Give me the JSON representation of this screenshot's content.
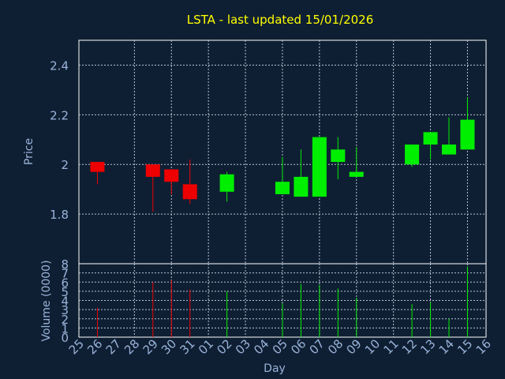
{
  "chart_data": {
    "type": "candlestick",
    "title": "LSTA - last updated 15/01/2026",
    "xlabel": "Day",
    "price_panel": {
      "ylabel": "Price",
      "ylim": [
        1.6,
        2.5
      ],
      "yticks": [
        "1.8",
        "2",
        "2.2",
        "2.4"
      ],
      "grid": true
    },
    "volume_panel": {
      "ylabel": "Volume (0000)",
      "ylim": [
        0,
        8
      ],
      "yticks": [
        "0",
        "1",
        "2",
        "3",
        "4",
        "5",
        "6",
        "7",
        "8"
      ],
      "grid": true
    },
    "x_tick_labels": [
      "25",
      "26",
      "27",
      "28",
      "29",
      "30",
      "31",
      "01",
      "02",
      "03",
      "04",
      "05",
      "06",
      "07",
      "08",
      "09",
      "10",
      "11",
      "12",
      "13",
      "14",
      "15",
      "16"
    ],
    "colors": {
      "up": "#00ee00",
      "down": "#ee0000",
      "title": "#ffff00",
      "axis_text": "#99b3d9",
      "background": "#0f1f33"
    },
    "candles": [
      {
        "day": "26",
        "open": 2.01,
        "high": 2.01,
        "low": 1.92,
        "close": 1.97,
        "volume": 3.2
      },
      {
        "day": "29",
        "open": 2.0,
        "high": 2.0,
        "low": 1.81,
        "close": 1.95,
        "volume": 6.0
      },
      {
        "day": "30",
        "open": 1.98,
        "high": 1.98,
        "low": 1.88,
        "close": 1.93,
        "volume": 6.2
      },
      {
        "day": "31",
        "open": 1.92,
        "high": 2.02,
        "low": 1.84,
        "close": 1.86,
        "volume": 5.2
      },
      {
        "day": "02",
        "open": 1.89,
        "high": 1.97,
        "low": 1.85,
        "close": 1.96,
        "volume": 5.0
      },
      {
        "day": "05",
        "open": 1.88,
        "high": 2.03,
        "low": 1.88,
        "close": 1.93,
        "volume": 3.7
      },
      {
        "day": "06",
        "open": 1.87,
        "high": 2.06,
        "low": 1.87,
        "close": 1.95,
        "volume": 5.8
      },
      {
        "day": "07",
        "open": 1.87,
        "high": 2.11,
        "low": 1.87,
        "close": 2.11,
        "volume": 5.7
      },
      {
        "day": "08",
        "open": 2.01,
        "high": 2.11,
        "low": 1.94,
        "close": 2.06,
        "volume": 5.3
      },
      {
        "day": "09",
        "open": 1.95,
        "high": 2.07,
        "low": 1.95,
        "close": 1.97,
        "volume": 4.3
      },
      {
        "day": "12",
        "open": 2.0,
        "high": 2.08,
        "low": 1.99,
        "close": 2.08,
        "volume": 3.6
      },
      {
        "day": "13",
        "open": 2.08,
        "high": 2.13,
        "low": 2.02,
        "close": 2.13,
        "volume": 3.8
      },
      {
        "day": "14",
        "open": 2.04,
        "high": 2.19,
        "low": 2.04,
        "close": 2.08,
        "volume": 2.0
      },
      {
        "day": "15",
        "open": 2.06,
        "high": 2.27,
        "low": 2.06,
        "close": 2.18,
        "volume": 7.7
      }
    ]
  }
}
